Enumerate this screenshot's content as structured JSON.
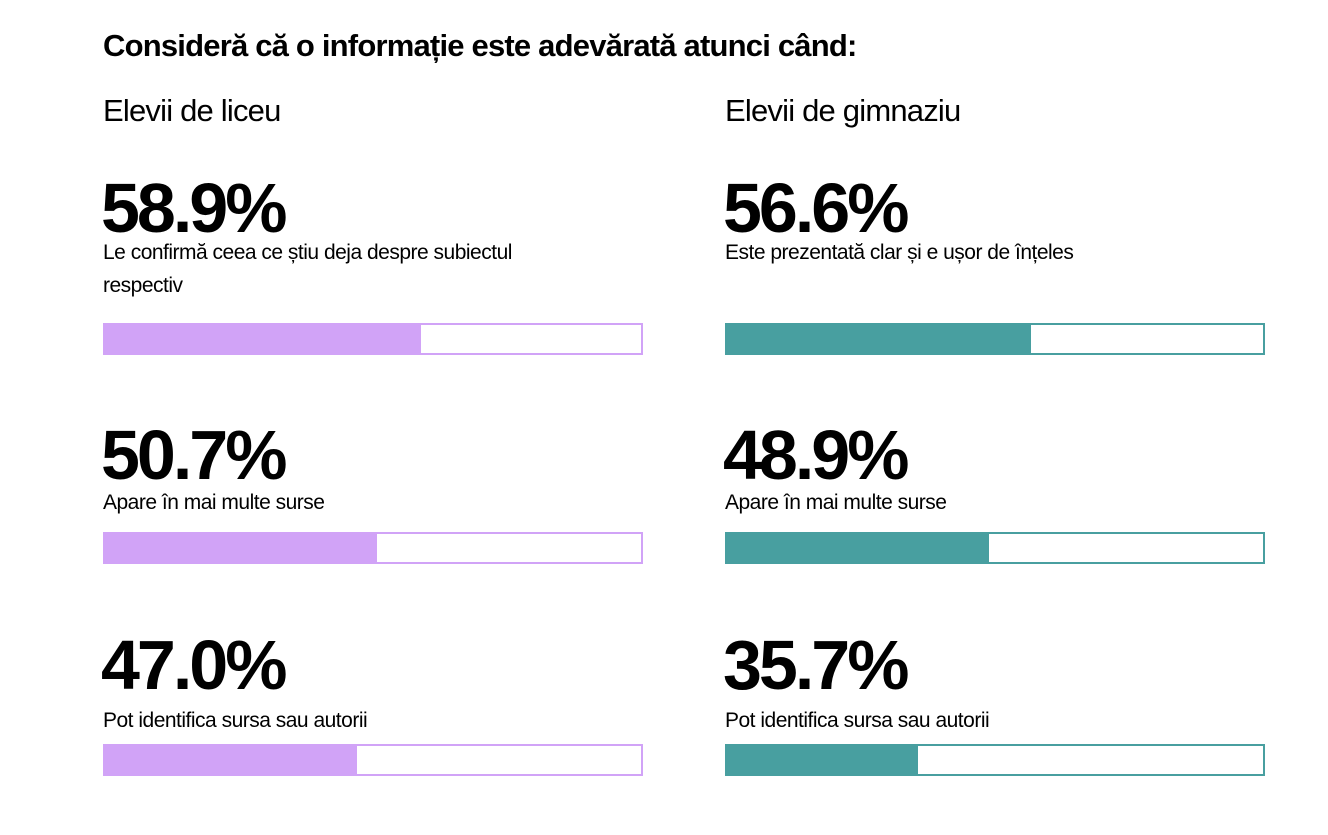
{
  "title": "Consideră că o informație este adevărată atunci când:",
  "chart_data": {
    "type": "bar",
    "title": "Consideră că o informație este adevărată atunci când:",
    "xlim": [
      0,
      100
    ],
    "groups": [
      {
        "name": "Elevii de liceu",
        "color": "#d1a3f7",
        "items": [
          {
            "value": 58.9,
            "value_label": "58.9%",
            "label": "Le confirmă ceea ce știu deja despre subiectul respectiv"
          },
          {
            "value": 50.7,
            "value_label": "50.7%",
            "label": "Apare în mai multe surse"
          },
          {
            "value": 47.0,
            "value_label": "47.0%",
            "label": "Pot identifica sursa sau autorii"
          }
        ]
      },
      {
        "name": "Elevii de gimnaziu",
        "color": "#489fa0",
        "items": [
          {
            "value": 56.6,
            "value_label": "56.6%",
            "label": "Este prezentată clar și e ușor de înțeles"
          },
          {
            "value": 48.9,
            "value_label": "48.9%",
            "label": "Apare în mai multe surse"
          },
          {
            "value": 35.7,
            "value_label": "35.7%",
            "label": "Pot identifica sursa sau autorii"
          }
        ]
      }
    ]
  }
}
